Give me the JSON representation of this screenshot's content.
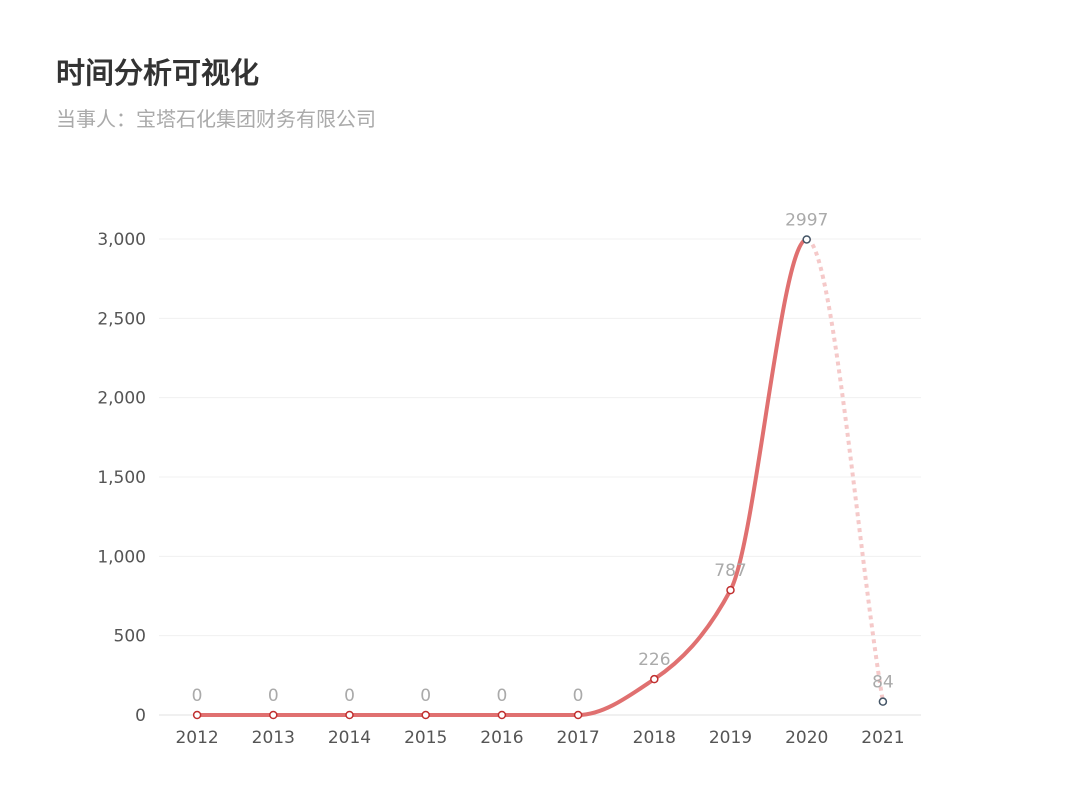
{
  "header": {
    "title": "时间分析可视化",
    "subtitle": "当事人：宝塔石化集团财务有限公司"
  },
  "chart_data": {
    "type": "line",
    "title": "",
    "xlabel": "",
    "ylabel": "",
    "categories": [
      "2012",
      "2013",
      "2014",
      "2015",
      "2016",
      "2017",
      "2018",
      "2019",
      "2020",
      "2021"
    ],
    "values": [
      0,
      0,
      0,
      0,
      0,
      0,
      226,
      787,
      2997,
      84
    ],
    "data_labels": [
      "0",
      "0",
      "0",
      "0",
      "0",
      "0",
      "226",
      "787",
      "2997",
      "84"
    ],
    "ylim": [
      0,
      3000
    ],
    "yticks": [
      0,
      500,
      1000,
      1500,
      2000,
      2500,
      3000
    ],
    "ytick_labels": [
      "0",
      "500",
      "1,000",
      "1,500",
      "2,000",
      "2,500",
      "3,000"
    ],
    "smooth": true,
    "last_segment_style": "dotted",
    "grid": true,
    "legend": "none",
    "colors": {
      "line": "#e07070",
      "dotted": "#f5c9c9",
      "grid": "#f0f0f0",
      "label": "#aaaaaa",
      "axis_text": "#555555",
      "marker_last": "#445566"
    }
  }
}
